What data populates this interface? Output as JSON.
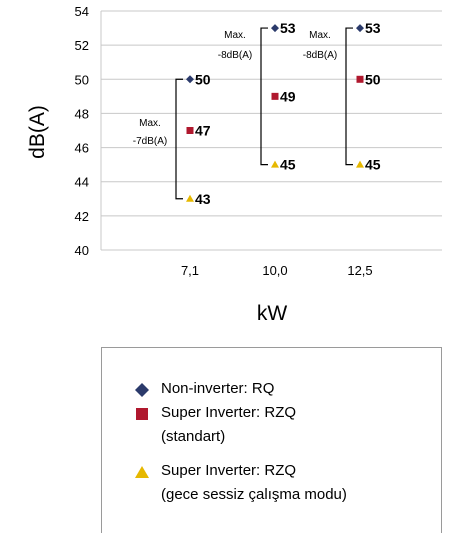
{
  "chart_data": {
    "type": "range",
    "categories": [
      "7,1",
      "10,0",
      "12,5"
    ],
    "xlabel": "kW",
    "ylabel": "dB(A)",
    "ylim": [
      40,
      54
    ],
    "yticks": [
      40,
      42,
      44,
      46,
      48,
      50,
      52,
      54
    ],
    "grid": true,
    "legend_position": "bottom",
    "series": [
      {
        "name": "Non-inverter: RQ",
        "marker": "diamond",
        "color": "#2b3a6b",
        "values": [
          50,
          53,
          53
        ]
      },
      {
        "name": "Super Inverter: RZQ (standart)",
        "marker": "square",
        "color": "#b0182e",
        "values": [
          47,
          49,
          50
        ]
      },
      {
        "name": "Super Inverter: RZQ (gece sessiz çalışma modu)",
        "marker": "triangle",
        "color": "#e6b800",
        "values": [
          43,
          45,
          45
        ]
      }
    ],
    "annotations": [
      {
        "line1": "Max.",
        "line2": "-7dB(A)"
      },
      {
        "line1": "Max.",
        "line2": "-8dB(A)"
      },
      {
        "line1": "Max.",
        "line2": "-8dB(A)"
      }
    ]
  },
  "legend": {
    "items": [
      {
        "lines": [
          "Non-inverter: RQ"
        ]
      },
      {
        "lines": [
          "Super Inverter: RZQ",
          "(standart)"
        ]
      },
      {
        "lines": [
          "Super Inverter: RZQ",
          "(gece sessiz çalışma modu)"
        ]
      }
    ]
  }
}
